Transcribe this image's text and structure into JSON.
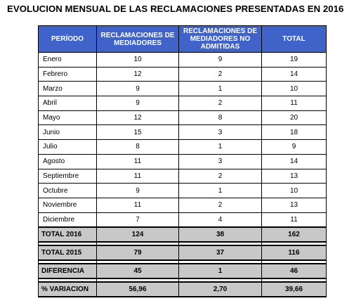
{
  "title": "EVOLUCION MENSUAL DE LAS RECLAMACIONES PRESENTADAS EN 2016",
  "header": {
    "period": "PERÍODO",
    "mediators": "RECLAMACIONES DE MEDIADORES",
    "not_admitted": "RECLAMACIONES DE MEDIADORES NO ADMITIDAS",
    "total": "TOTAL"
  },
  "months": [
    {
      "period": "Enero",
      "mediators": "10",
      "not_admitted": "9",
      "total": "19"
    },
    {
      "period": "Febrero",
      "mediators": "12",
      "not_admitted": "2",
      "total": "14"
    },
    {
      "period": "Marzo",
      "mediators": "9",
      "not_admitted": "1",
      "total": "10"
    },
    {
      "period": "Abril",
      "mediators": "9",
      "not_admitted": "2",
      "total": "11"
    },
    {
      "period": "Mayo",
      "mediators": "12",
      "not_admitted": "8",
      "total": "20"
    },
    {
      "period": "Junio",
      "mediators": "15",
      "not_admitted": "3",
      "total": "18"
    },
    {
      "period": "Julio",
      "mediators": "8",
      "not_admitted": "1",
      "total": "9"
    },
    {
      "period": "Agosto",
      "mediators": "11",
      "not_admitted": "3",
      "total": "14"
    },
    {
      "period": "Septiembre",
      "mediators": "11",
      "not_admitted": "2",
      "total": "13"
    },
    {
      "period": "Octubre",
      "mediators": "9",
      "not_admitted": "1",
      "total": "10"
    },
    {
      "period": "Noviembre",
      "mediators": "11",
      "not_admitted": "2",
      "total": "13"
    },
    {
      "period": "Diciembre",
      "mediators": "7",
      "not_admitted": "4",
      "total": "11"
    }
  ],
  "summary": [
    {
      "period": "TOTAL 2016",
      "mediators": "124",
      "not_admitted": "38",
      "total": "162"
    },
    {
      "period": "TOTAL 2015",
      "mediators": "79",
      "not_admitted": "37",
      "total": "116"
    },
    {
      "period": "DIFERENCIA",
      "mediators": "45",
      "not_admitted": "1",
      "total": "46"
    },
    {
      "period": "% VARIACION",
      "mediators": "56,96",
      "not_admitted": "2,70",
      "total": "39,66"
    }
  ],
  "colors": {
    "header_bg": "#3f63c8",
    "header_text": "#ffffff",
    "summary_bg": "#c8c8c8"
  }
}
